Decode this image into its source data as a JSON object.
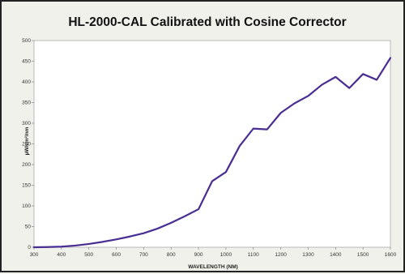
{
  "chart_data": {
    "type": "line",
    "title": "HL-2000-CAL Calibrated with Cosine Corrector",
    "xlabel": "WAVELENGTH (NM)",
    "ylabel": "µW/cm²/nm",
    "xlim": [
      300,
      1600
    ],
    "ylim": [
      0,
      500
    ],
    "xticks": [
      300,
      400,
      500,
      600,
      700,
      800,
      900,
      1000,
      1100,
      1200,
      1300,
      1400,
      1500,
      1600
    ],
    "yticks": [
      0,
      50,
      100,
      150,
      200,
      250,
      300,
      350,
      400,
      450,
      500
    ],
    "grid": false,
    "legend": "none",
    "series": [
      {
        "color": "#4a2d91",
        "x": [
          300,
          350,
          400,
          450,
          500,
          550,
          600,
          650,
          700,
          750,
          800,
          850,
          900,
          950,
          1000,
          1050,
          1100,
          1150,
          1200,
          1250,
          1300,
          1350,
          1400,
          1450,
          1500,
          1550,
          1600
        ],
        "y": [
          0,
          0.5,
          1.5,
          4,
          8,
          13,
          19,
          26,
          34,
          45,
          59,
          75,
          92,
          160,
          182,
          245,
          287,
          285,
          325,
          348,
          366,
          393,
          412,
          385,
          419,
          405,
          458
        ]
      }
    ]
  }
}
